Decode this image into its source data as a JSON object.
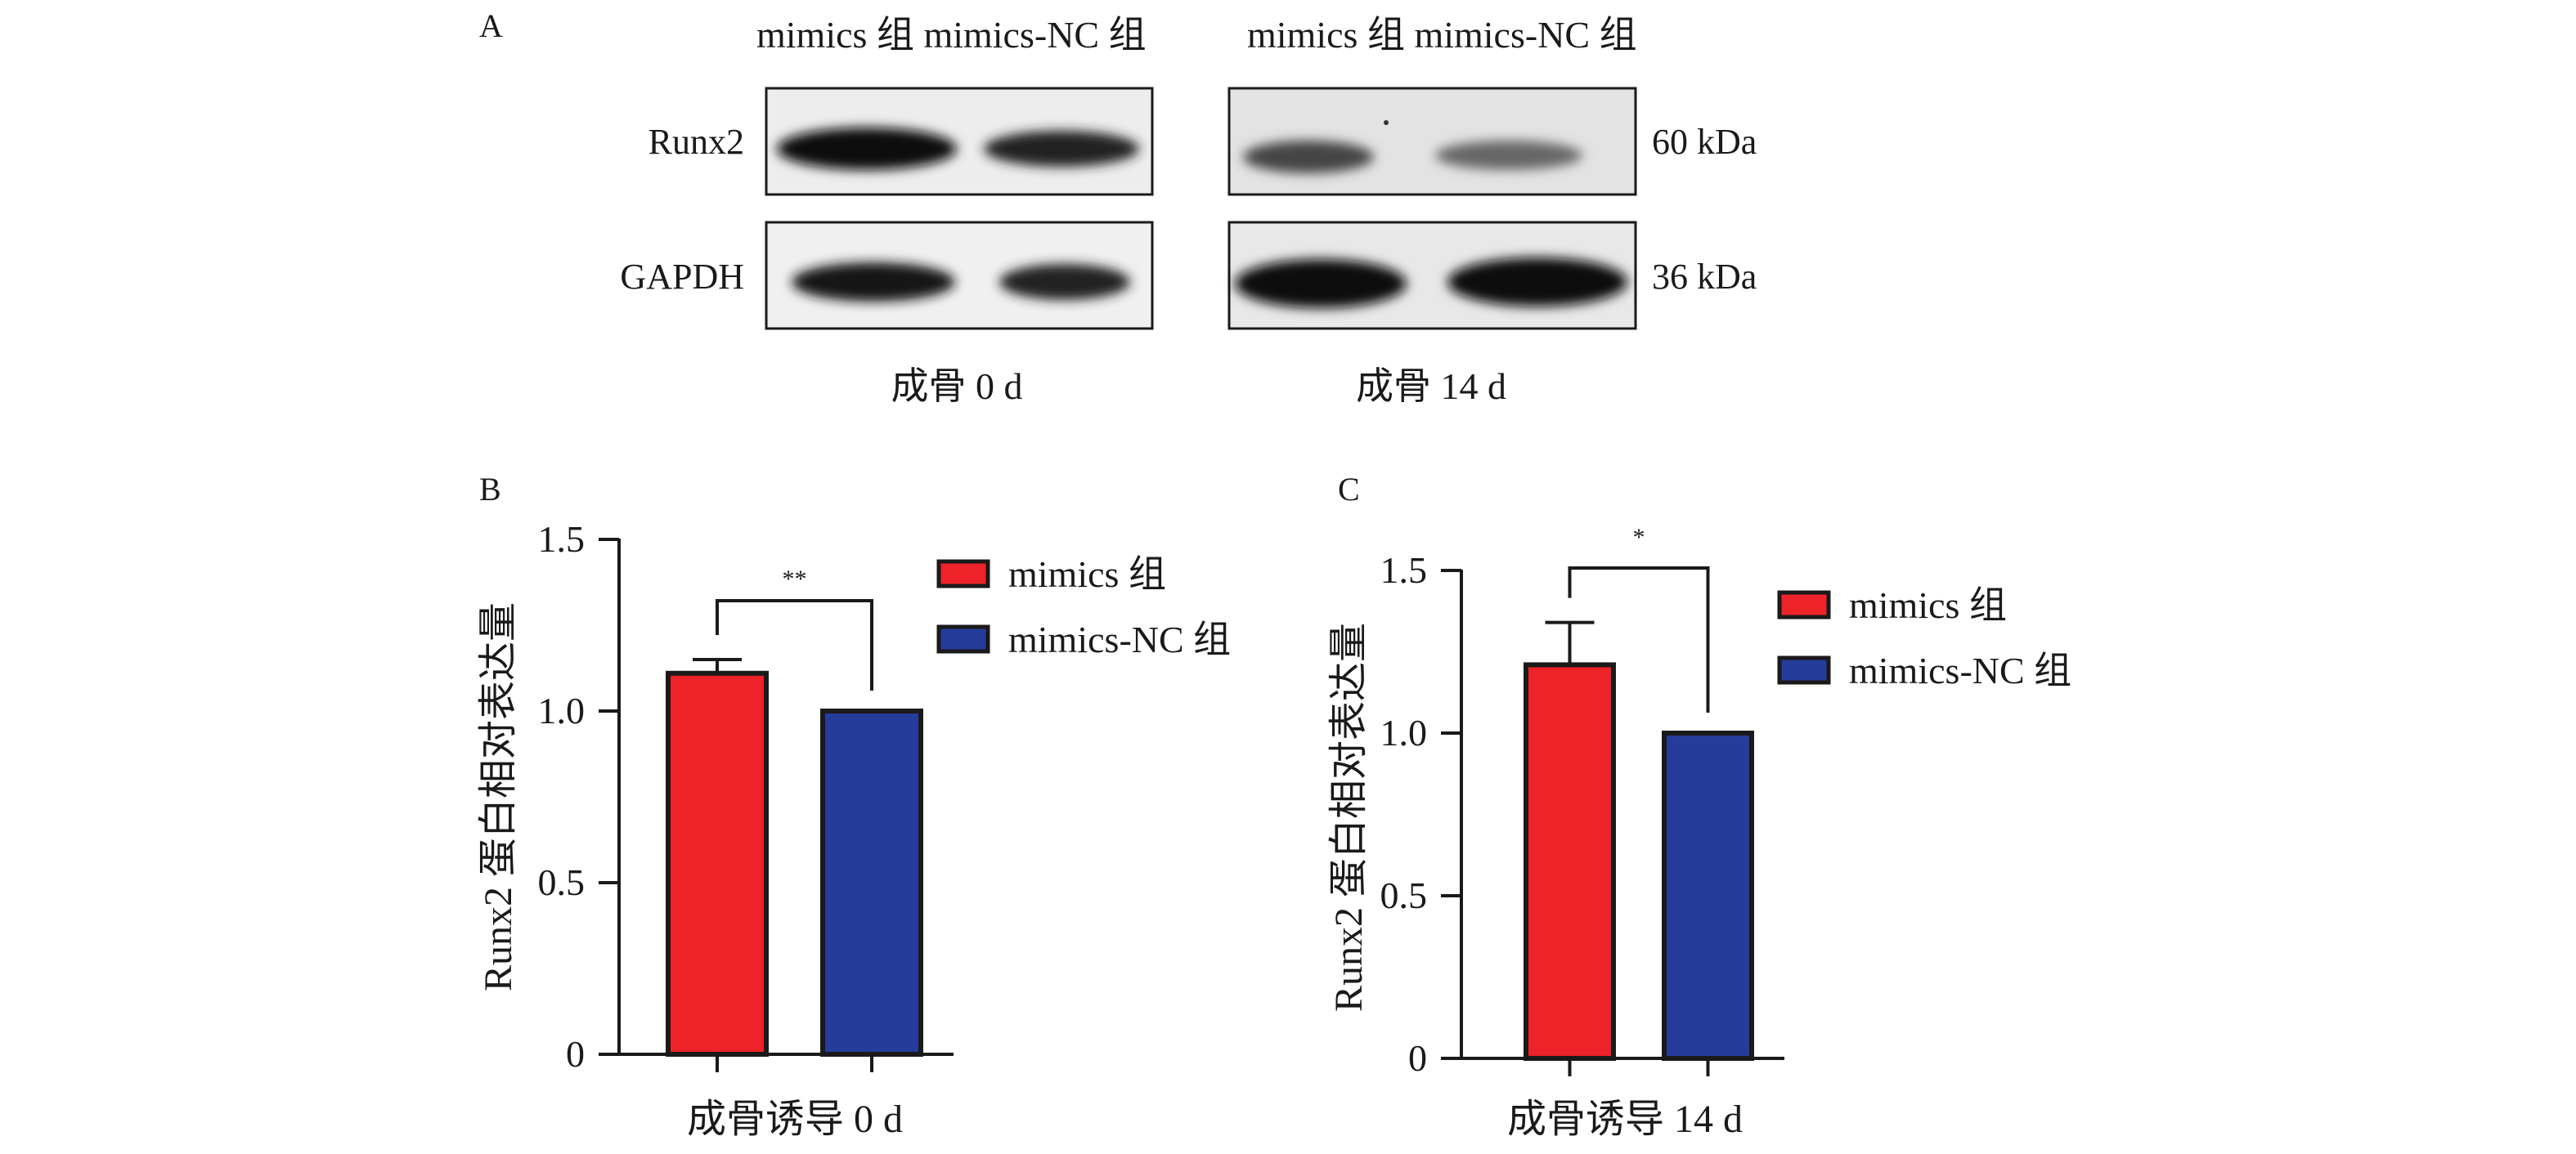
{
  "panel_a": {
    "letter": "A",
    "lane_header_left": "mimics 组 mimics-NC 组",
    "lane_header_right": "mimics 组 mimics-NC 组",
    "row_labels": [
      "Runx2",
      "GAPDH"
    ],
    "kda_labels": [
      "60 kDa",
      "36 kDa"
    ],
    "timepoints": [
      "成骨 0 d",
      "成骨 14 d"
    ],
    "band_intensity": {
      "runx2_0d": [
        1.0,
        0.85
      ],
      "gapdh_0d": [
        0.95,
        0.85
      ],
      "runx2_14d": [
        0.55,
        0.4
      ],
      "gapdh_14d": [
        1.0,
        1.0
      ]
    }
  },
  "colors": {
    "mimics": "#ee2229",
    "mimics_nc": "#253c9b",
    "axis": "#1a1a1a"
  },
  "chart_data": [
    {
      "type": "bar",
      "panel": "B",
      "title": "",
      "xlabel": "成骨诱导 0 d",
      "ylabel": "Runx2 蛋白相对表达量",
      "categories": [
        "mimics 组",
        "mimics-NC 组"
      ],
      "series": [
        {
          "name": "Runx2",
          "values": [
            1.11,
            1.0
          ],
          "errors": [
            0.04,
            0
          ]
        }
      ],
      "ylim": [
        0,
        1.5
      ],
      "yticks": [
        "0",
        "0.5",
        "1.0",
        "1.5"
      ],
      "significance": "**",
      "legend": [
        "mimics 组",
        "mimics-NC 组"
      ],
      "legend_position": "top-right"
    },
    {
      "type": "bar",
      "panel": "C",
      "title": "",
      "xlabel": "成骨诱导 14 d",
      "ylabel": "Runx2 蛋白相对表达量",
      "categories": [
        "mimics 组",
        "mimics-NC 组"
      ],
      "series": [
        {
          "name": "Runx2",
          "values": [
            1.21,
            1.0
          ],
          "errors": [
            0.13,
            0
          ]
        }
      ],
      "ylim": [
        0,
        1.5
      ],
      "yticks": [
        "0",
        "0.5",
        "1.0",
        "1.5"
      ],
      "significance": "*",
      "legend": [
        "mimics 组",
        "mimics-NC 组"
      ],
      "legend_position": "top-right"
    }
  ]
}
